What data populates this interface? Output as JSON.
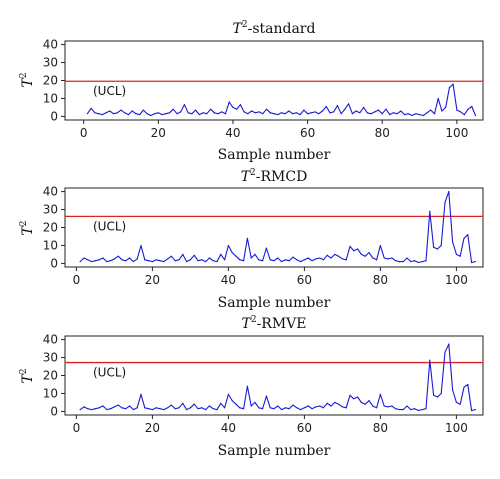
{
  "chart_data": [
    {
      "type": "line",
      "title_main": "T",
      "title_sup": "2",
      "title_suffix": "-standard",
      "ylabel_main": "T",
      "ylabel_sup": "2",
      "xlabel": "Sample number",
      "xlim": [
        -5,
        107
      ],
      "ylim": [
        -2,
        42
      ],
      "xticks": [
        0,
        20,
        40,
        60,
        80,
        100
      ],
      "yticks": [
        0,
        10,
        20,
        30,
        40
      ],
      "ucl_label": "(UCL)",
      "ucl": 19.6,
      "line_color": "#1a1ad6",
      "ucl_color": "#e02020",
      "x": [
        1,
        2,
        3,
        4,
        5,
        6,
        7,
        8,
        9,
        10,
        11,
        12,
        13,
        14,
        15,
        16,
        17,
        18,
        19,
        20,
        21,
        22,
        23,
        24,
        25,
        26,
        27,
        28,
        29,
        30,
        31,
        32,
        33,
        34,
        35,
        36,
        37,
        38,
        39,
        40,
        41,
        42,
        43,
        44,
        45,
        46,
        47,
        48,
        49,
        50,
        51,
        52,
        53,
        54,
        55,
        56,
        57,
        58,
        59,
        60,
        61,
        62,
        63,
        64,
        65,
        66,
        67,
        68,
        69,
        70,
        71,
        72,
        73,
        74,
        75,
        76,
        77,
        78,
        79,
        80,
        81,
        82,
        83,
        84,
        85,
        86,
        87,
        88,
        89,
        90,
        91,
        92,
        93,
        94,
        95,
        96,
        97,
        98,
        99,
        100,
        101,
        102,
        103,
        104,
        105
      ],
      "values": [
        1.5,
        4.5,
        2.0,
        1.5,
        1.0,
        2.0,
        3.0,
        1.5,
        2.0,
        3.5,
        2.0,
        1.0,
        3.0,
        1.5,
        1.0,
        3.5,
        1.5,
        0.5,
        1.5,
        2.0,
        1.0,
        1.5,
        2.0,
        4.0,
        1.5,
        2.5,
        6.5,
        2.0,
        1.5,
        3.5,
        1.0,
        2.0,
        1.5,
        4.0,
        2.0,
        1.5,
        2.5,
        1.5,
        8.0,
        5.0,
        4.0,
        6.5,
        2.5,
        1.5,
        3.0,
        2.0,
        2.5,
        1.5,
        4.0,
        2.0,
        1.5,
        1.0,
        2.0,
        1.5,
        3.0,
        1.5,
        2.0,
        1.0,
        3.5,
        1.5,
        2.0,
        2.5,
        1.5,
        3.0,
        5.5,
        2.0,
        2.5,
        6.0,
        1.5,
        4.0,
        7.0,
        1.5,
        3.0,
        2.0,
        5.0,
        2.0,
        1.5,
        2.5,
        3.5,
        1.5,
        4.0,
        1.0,
        2.0,
        1.5,
        3.0,
        1.0,
        1.5,
        0.5,
        1.5,
        1.0,
        0.5,
        2.0,
        3.5,
        1.5,
        10.0,
        3.0,
        5.0,
        16.0,
        18.0,
        3.5,
        2.5,
        1.0,
        4.0,
        5.5,
        0.5
      ]
    },
    {
      "type": "line",
      "title_main": "T",
      "title_sup": "2",
      "title_suffix": "-RMCD",
      "ylabel_main": "T",
      "ylabel_sup": "2",
      "xlabel": "Sample number",
      "xlim": [
        -3,
        107
      ],
      "ylim": [
        -2,
        42
      ],
      "xticks": [
        0,
        20,
        40,
        60,
        80,
        100
      ],
      "yticks": [
        0,
        10,
        20,
        30,
        40
      ],
      "ucl_label": "(UCL)",
      "ucl": 26.2,
      "line_color": "#1a1ad6",
      "ucl_color": "#e02020",
      "x": [
        1,
        2,
        3,
        4,
        5,
        6,
        7,
        8,
        9,
        10,
        11,
        12,
        13,
        14,
        15,
        16,
        17,
        18,
        19,
        20,
        21,
        22,
        23,
        24,
        25,
        26,
        27,
        28,
        29,
        30,
        31,
        32,
        33,
        34,
        35,
        36,
        37,
        38,
        39,
        40,
        41,
        42,
        43,
        44,
        45,
        46,
        47,
        48,
        49,
        50,
        51,
        52,
        53,
        54,
        55,
        56,
        57,
        58,
        59,
        60,
        61,
        62,
        63,
        64,
        65,
        66,
        67,
        68,
        69,
        70,
        71,
        72,
        73,
        74,
        75,
        76,
        77,
        78,
        79,
        80,
        81,
        82,
        83,
        84,
        85,
        86,
        87,
        88,
        89,
        90,
        91,
        92,
        93,
        94,
        95,
        96,
        97,
        98,
        99,
        100,
        101,
        102,
        103,
        104,
        105
      ],
      "values": [
        1.0,
        3.0,
        2.0,
        1.0,
        1.5,
        2.0,
        3.0,
        1.0,
        1.5,
        2.5,
        4.0,
        2.0,
        1.5,
        3.0,
        1.0,
        2.5,
        10.0,
        2.0,
        1.5,
        1.0,
        2.0,
        1.5,
        1.0,
        2.5,
        4.0,
        1.5,
        2.0,
        5.0,
        1.0,
        2.0,
        4.5,
        1.5,
        2.0,
        1.0,
        3.0,
        1.5,
        1.0,
        5.0,
        2.0,
        10.0,
        6.0,
        4.0,
        2.0,
        1.5,
        14.0,
        3.0,
        5.0,
        2.0,
        1.5,
        8.5,
        2.0,
        1.5,
        3.0,
        1.0,
        2.0,
        1.5,
        3.5,
        2.0,
        1.0,
        2.0,
        3.0,
        1.5,
        2.5,
        3.0,
        2.0,
        4.5,
        3.0,
        5.0,
        4.0,
        2.5,
        2.0,
        9.5,
        7.0,
        8.0,
        5.0,
        4.0,
        6.0,
        3.0,
        2.0,
        10.0,
        3.0,
        2.5,
        3.0,
        1.5,
        1.0,
        1.0,
        3.0,
        1.0,
        1.5,
        0.5,
        1.0,
        1.5,
        29.0,
        9.0,
        8.0,
        10.0,
        34.0,
        40.0,
        12.0,
        5.0,
        4.0,
        14.0,
        16.0,
        0.5,
        1.0
      ]
    },
    {
      "type": "line",
      "title_main": "T",
      "title_sup": "2",
      "title_suffix": "-RMVE",
      "ylabel_main": "T",
      "ylabel_sup": "2",
      "xlabel": "Sample number",
      "xlim": [
        -3,
        107
      ],
      "ylim": [
        -2,
        42
      ],
      "xticks": [
        0,
        20,
        40,
        60,
        80,
        100
      ],
      "yticks": [
        0,
        10,
        20,
        30,
        40
      ],
      "ucl_label": "(UCL)",
      "ucl": 27.2,
      "line_color": "#1a1ad6",
      "ucl_color": "#e02020",
      "x": [
        1,
        2,
        3,
        4,
        5,
        6,
        7,
        8,
        9,
        10,
        11,
        12,
        13,
        14,
        15,
        16,
        17,
        18,
        19,
        20,
        21,
        22,
        23,
        24,
        25,
        26,
        27,
        28,
        29,
        30,
        31,
        32,
        33,
        34,
        35,
        36,
        37,
        38,
        39,
        40,
        41,
        42,
        43,
        44,
        45,
        46,
        47,
        48,
        49,
        50,
        51,
        52,
        53,
        54,
        55,
        56,
        57,
        58,
        59,
        60,
        61,
        62,
        63,
        64,
        65,
        66,
        67,
        68,
        69,
        70,
        71,
        72,
        73,
        74,
        75,
        76,
        77,
        78,
        79,
        80,
        81,
        82,
        83,
        84,
        85,
        86,
        87,
        88,
        89,
        90,
        91,
        92,
        93,
        94,
        95,
        96,
        97,
        98,
        99,
        100,
        101,
        102,
        103,
        104,
        105
      ],
      "values": [
        1.0,
        2.5,
        1.5,
        1.0,
        1.5,
        2.0,
        3.0,
        1.0,
        1.5,
        2.5,
        3.5,
        2.0,
        1.5,
        3.0,
        1.0,
        2.0,
        9.5,
        2.0,
        1.5,
        1.0,
        2.0,
        1.5,
        1.0,
        2.0,
        3.5,
        1.5,
        2.0,
        4.5,
        1.0,
        2.0,
        4.0,
        1.5,
        2.0,
        1.0,
        3.0,
        1.5,
        1.0,
        4.5,
        2.0,
        9.5,
        6.0,
        4.0,
        2.0,
        1.5,
        14.0,
        3.0,
        5.0,
        2.0,
        1.5,
        8.5,
        2.0,
        1.5,
        3.0,
        1.0,
        2.0,
        1.5,
        3.5,
        2.0,
        1.0,
        2.0,
        3.0,
        1.5,
        2.5,
        3.0,
        2.0,
        4.5,
        3.0,
        5.0,
        4.0,
        2.5,
        2.0,
        9.0,
        7.0,
        8.0,
        5.0,
        4.0,
        6.0,
        3.0,
        2.0,
        9.5,
        3.0,
        2.5,
        3.0,
        1.5,
        1.0,
        1.0,
        3.0,
        1.0,
        1.5,
        0.5,
        1.0,
        1.5,
        28.5,
        9.0,
        8.0,
        10.0,
        33.0,
        37.5,
        12.0,
        5.0,
        4.0,
        13.5,
        15.0,
        0.5,
        1.0
      ]
    }
  ]
}
